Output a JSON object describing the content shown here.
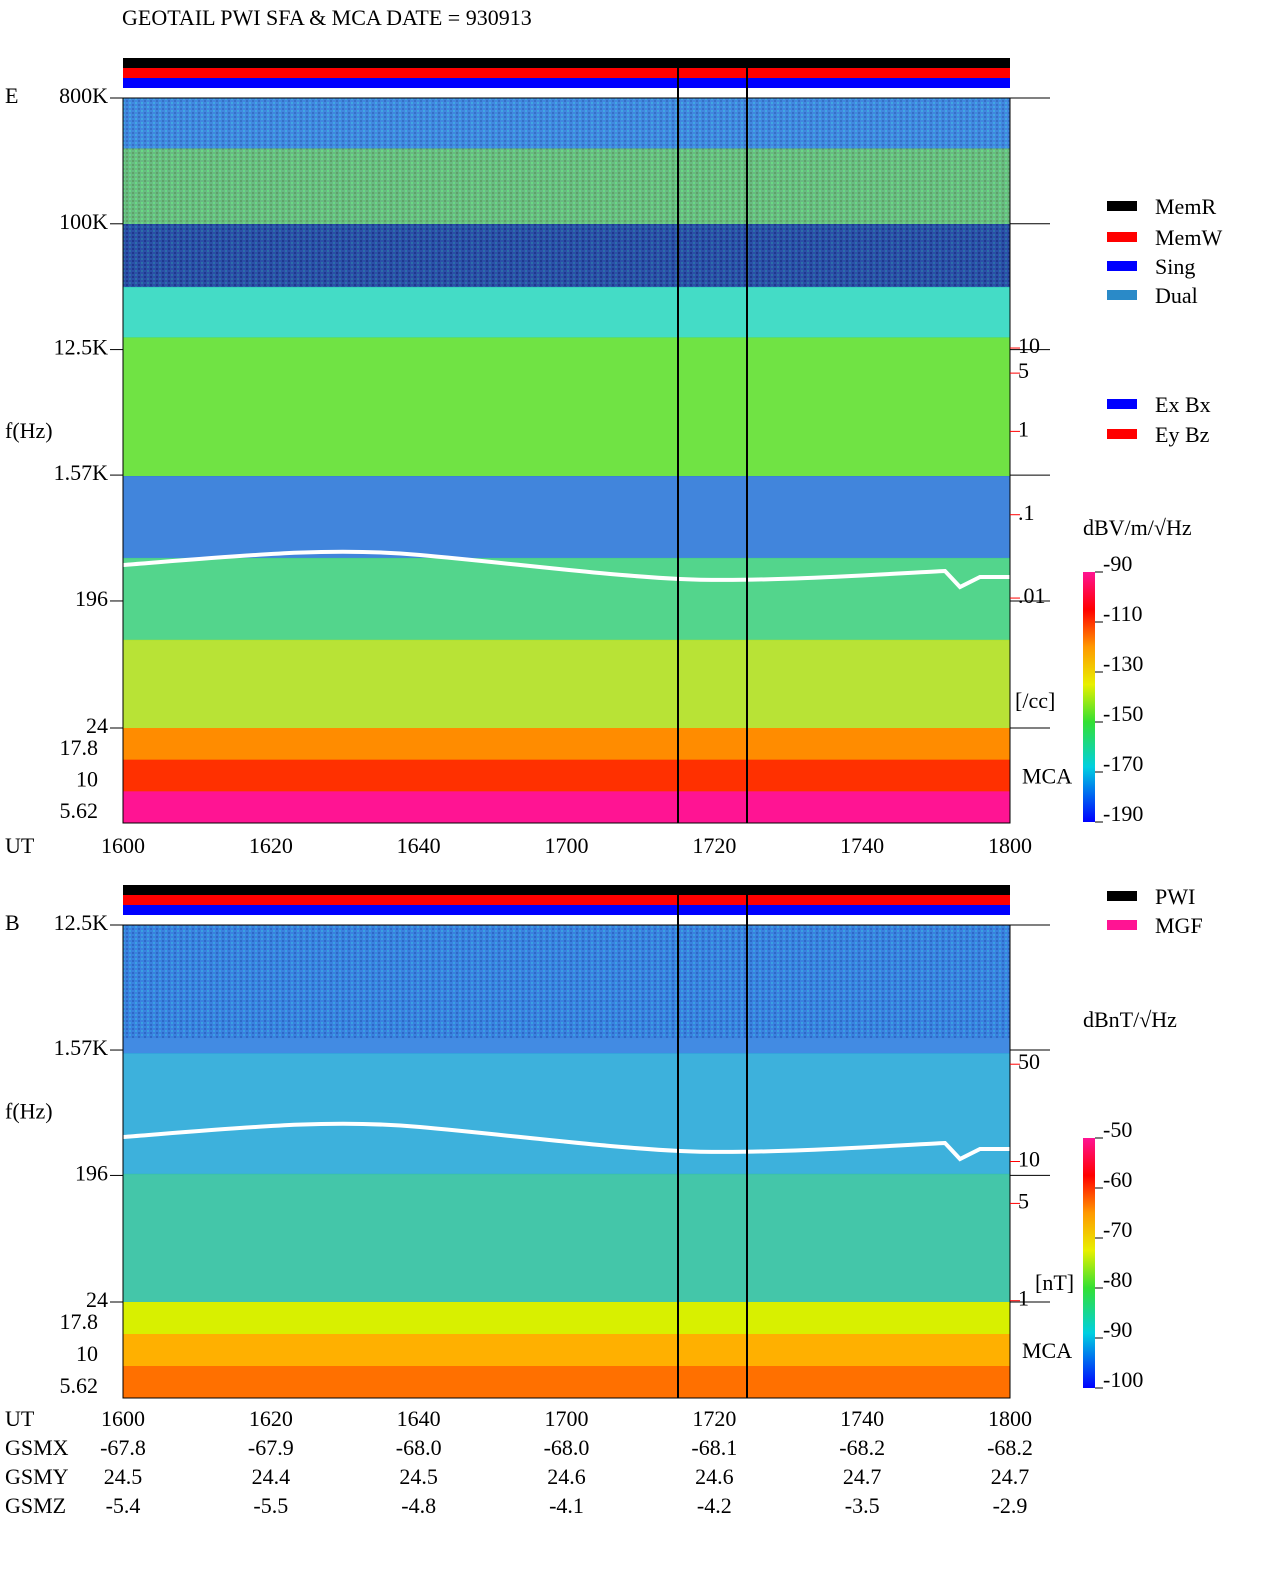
{
  "title": "GEOTAIL  PWI SFA & MCA   DATE = 930913",
  "chart_data": [
    {
      "type": "spectrogram",
      "panel_label": "E",
      "ylabel": "f(Hz)",
      "xlabel": "UT",
      "log_y": true,
      "xticks": [
        "1600",
        "1620",
        "1640",
        "1700",
        "1720",
        "1740",
        "1800"
      ],
      "ylim": [
        24,
        800000
      ],
      "yticks": [
        {
          "value": 800000,
          "label": "800K"
        },
        {
          "value": 100000,
          "label": "100K"
        },
        {
          "value": 12500,
          "label": "12.5K"
        },
        {
          "value": 1570,
          "label": "1.57K"
        },
        196,
        24
      ],
      "mca_label": "MCA",
      "mca_ticks": [
        17.8,
        10,
        5.62
      ],
      "y2lim": [
        2e-05,
        10000
      ],
      "y2label": "[/cc]",
      "y2color": "#ff0000",
      "y2ticks": [
        10,
        5,
        1,
        {
          "value": 0.1,
          "label": ".1"
        },
        {
          "value": 0.01,
          "label": ".01"
        }
      ],
      "colorbar_label": "dBV/m/√Hz",
      "clim": [
        -190,
        -90
      ],
      "cticks": [
        -90,
        -110,
        -130,
        -150,
        -170,
        -190
      ],
      "legend": [
        {
          "name": "MemR",
          "color": "#000000"
        },
        {
          "name": "MemW",
          "color": "#ff0000"
        },
        {
          "name": "Sing",
          "color": "#0000ff"
        },
        {
          "name": "Dual",
          "color": "#2a8ac8"
        }
      ],
      "legend2": [
        {
          "name": "Ex Bx",
          "color": "#0000ff"
        },
        {
          "name": "Ey Bz",
          "color": "#ff0000"
        }
      ]
    },
    {
      "type": "spectrogram",
      "panel_label": "B",
      "ylabel": "f(Hz)",
      "xlabel": "UT",
      "log_y": true,
      "xticks": [
        "1600",
        "1620",
        "1640",
        "1700",
        "1720",
        "1740",
        "1800"
      ],
      "ylim": [
        24,
        12500
      ],
      "yticks": [
        {
          "value": 12500,
          "label": "12.5K"
        },
        {
          "value": 1570,
          "label": "1.57K"
        },
        196,
        24
      ],
      "mca_label": "MCA",
      "mca_ticks": [
        17.8,
        10,
        5.62
      ],
      "y2lim": [
        0.2,
        500
      ],
      "y2label": "[nT]",
      "y2color": "#ff0000",
      "y2ticks": [
        50,
        10,
        5,
        1
      ],
      "colorbar_label": "dBnT/√Hz",
      "clim": [
        -100,
        -50
      ],
      "cticks": [
        -50,
        -60,
        -70,
        -80,
        -90,
        -100
      ],
      "legend": [
        {
          "name": "PWI",
          "color": "#000000"
        },
        {
          "name": "MGF",
          "color": "#ff1493"
        }
      ]
    }
  ],
  "ephemeris": [
    {
      "name": "GSMX",
      "values": [
        "-67.8",
        "-67.9",
        "-68.0",
        "-68.0",
        "-68.1",
        "-68.2",
        "-68.2"
      ]
    },
    {
      "name": "GSMY",
      "values": [
        "24.5",
        "24.4",
        "24.5",
        "24.6",
        "24.6",
        "24.7",
        "24.7"
      ]
    },
    {
      "name": "GSMZ",
      "values": [
        "-5.4",
        "-5.5",
        "-4.8",
        "-4.1",
        "-4.2",
        "-3.5",
        "-2.9"
      ]
    }
  ]
}
